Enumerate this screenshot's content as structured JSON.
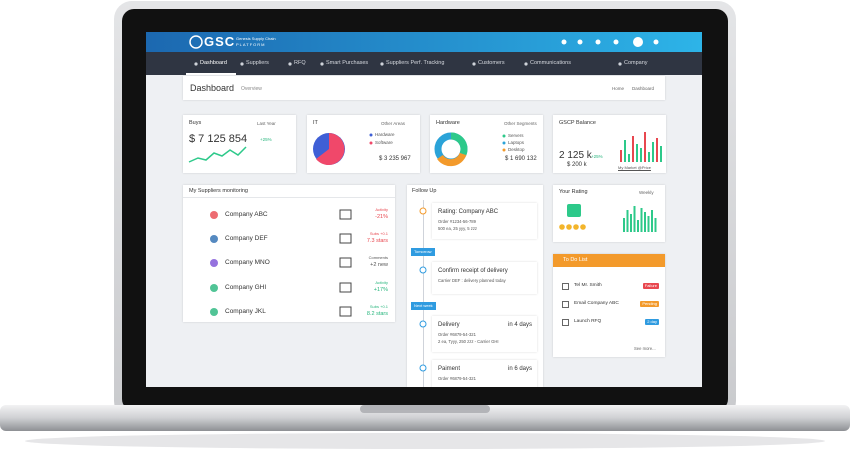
{
  "header": {
    "logo": "GSC",
    "tagline": "Genesis Supply Chain",
    "platform": "PLATFORM"
  },
  "nav": [
    "Dashboard",
    "Suppliers",
    "RFQ",
    "Smart Purchases",
    "Suppliers Perf. Tracking",
    "Customers",
    "Communications",
    "Company"
  ],
  "page": {
    "title": "Dashboard",
    "subtitle": "Overview",
    "breadcrumb": [
      "Home",
      "Dashboard"
    ]
  },
  "cards": {
    "buys": {
      "title": "Buys",
      "filter": "Last Year",
      "amount": "$ 7 125 854",
      "change": "+25%"
    },
    "it": {
      "title": "IT",
      "filter": "Other Areas",
      "legend": [
        "Hardware",
        "Software"
      ],
      "amount": "$ 3 235 967"
    },
    "hardware": {
      "title": "Hardware",
      "filter": "Other Segments",
      "legend": [
        "Servers",
        "Laptops",
        "Desktop"
      ],
      "amount": "$ 1 690 132"
    },
    "balance": {
      "title": "GSCP Balance",
      "amount": "2 125 k",
      "change": "+25%",
      "sub": "$ 200 k",
      "link": "My Market @Price"
    }
  },
  "suppliers": {
    "title": "My Suppliers monitoring",
    "rows": [
      {
        "name": "Company ABC",
        "metric": "Activity",
        "value": "-21%",
        "color": "#e8474f"
      },
      {
        "name": "Company DEF",
        "metric": "Subs +0.1",
        "value": "7.3 stars",
        "color": "#e8474f"
      },
      {
        "name": "Company MNO",
        "metric": "Comments",
        "value": "+2 new",
        "color": "#555555"
      },
      {
        "name": "Company GHI",
        "metric": "Activity",
        "value": "+17%",
        "color": "#26b57c"
      },
      {
        "name": "Company JKL",
        "metric": "Subs +0.1",
        "value": "8.2 stars",
        "color": "#26b57c"
      }
    ]
  },
  "follow_up": {
    "title": "Follow Up",
    "items": [
      {
        "heading": "Rating: Company ABC",
        "lines": [
          "Order #1234-56-789",
          "500 ea, 25 yyy, 5 zzz"
        ]
      },
      {
        "separator": "Tomorrow",
        "heading": "Confirm receipt of delivery",
        "lines": [
          "Carrier DEF : delivery planned today"
        ]
      },
      {
        "separator": "Next week",
        "heading": "Delivery",
        "due": "in 4 days",
        "lines": [
          "Order #6879-54-321",
          "2 ea, Tyyy, 250 zzz - Carrier GHI"
        ]
      },
      {
        "heading": "Paiment",
        "due": "in 6 days",
        "lines": [
          "Order #6879-54-321"
        ]
      }
    ]
  },
  "rating": {
    "title": "Your Rating",
    "filter": "Weekly"
  },
  "todo": {
    "title": "To Do List",
    "items": [
      {
        "text": "Tel Mr. Smith",
        "tag": "Failure",
        "color": "#e8474f"
      },
      {
        "text": "Email Company ABC",
        "tag": "Pending",
        "color": "#f39a2b"
      },
      {
        "text": "Launch RFQ",
        "tag": "2 day",
        "color": "#2f9be0"
      }
    ],
    "more": "See more..."
  }
}
